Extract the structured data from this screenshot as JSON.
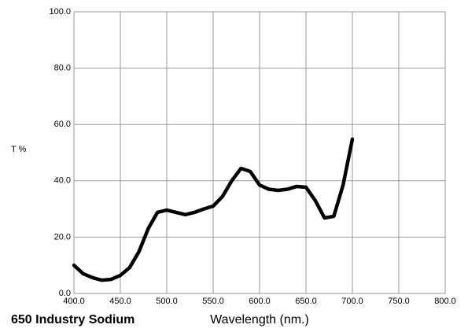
{
  "chart_data": {
    "type": "line",
    "title": "650 Industry Sodium",
    "x_label": "Wavelength (nm.)",
    "y_label": "T %",
    "x": [
      400,
      410,
      420,
      430,
      440,
      450,
      460,
      470,
      480,
      490,
      500,
      510,
      520,
      530,
      540,
      550,
      560,
      570,
      580,
      590,
      600,
      610,
      620,
      630,
      640,
      650,
      660,
      670,
      680,
      690,
      700
    ],
    "series": [
      {
        "name": "650 Industry Sodium",
        "color": "#000000",
        "values": [
          10,
          7,
          5.6,
          4.7,
          5,
          6.4,
          9.2,
          14.8,
          23,
          28.8,
          29.6,
          28.8,
          28,
          28.8,
          30,
          31,
          34.4,
          40,
          44.4,
          43.3,
          38.5,
          37,
          36.6,
          37,
          38,
          37.7,
          33,
          26.8,
          27.4,
          38.5,
          54.8
        ]
      }
    ],
    "xlim": [
      400,
      800
    ],
    "xticks": [
      {
        "value": 400,
        "label": "400.0"
      },
      {
        "value": 450,
        "label": "450.0"
      },
      {
        "value": 500,
        "label": "500.0"
      },
      {
        "value": 550,
        "label": "550.0"
      },
      {
        "value": 600,
        "label": "600.0"
      },
      {
        "value": 650,
        "label": "650.0"
      },
      {
        "value": 700,
        "label": "700.0"
      },
      {
        "value": 750,
        "label": "750.0"
      },
      {
        "value": 800,
        "label": "800.0"
      }
    ],
    "ylim": [
      0,
      100
    ],
    "yticks": [
      {
        "value": 0,
        "label": "0.0"
      },
      {
        "value": 20,
        "label": "20.0"
      },
      {
        "value": 40,
        "label": "40.0"
      },
      {
        "value": 60,
        "label": "60.0"
      },
      {
        "value": 80,
        "label": "80.0"
      },
      {
        "value": 100,
        "label": "100.0"
      }
    ],
    "grid": true
  }
}
